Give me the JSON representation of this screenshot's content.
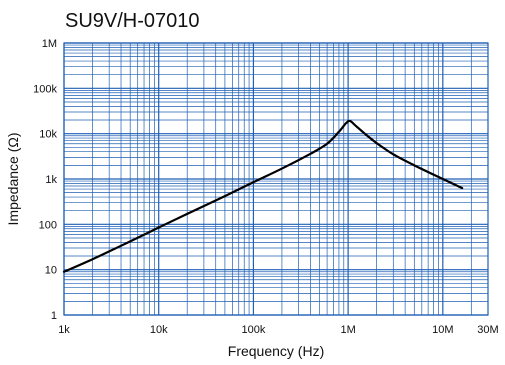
{
  "chart_data": {
    "type": "line",
    "title": "SU9V/H-07010",
    "xlabel": "Frequency (Hz)",
    "ylabel": "Impedance (Ω)",
    "x_scale": "log",
    "y_scale": "log",
    "xlim": [
      1000,
      30000000
    ],
    "ylim": [
      1,
      1000000
    ],
    "grid": true,
    "x_ticks": [
      {
        "value": 1000,
        "label": "1k"
      },
      {
        "value": 10000,
        "label": "10k"
      },
      {
        "value": 100000,
        "label": "100k"
      },
      {
        "value": 1000000,
        "label": "1M"
      },
      {
        "value": 10000000,
        "label": "10M"
      },
      {
        "value": 30000000,
        "label": "30M"
      }
    ],
    "y_ticks": [
      {
        "value": 1,
        "label": "1"
      },
      {
        "value": 10,
        "label": "10"
      },
      {
        "value": 100,
        "label": "100"
      },
      {
        "value": 1000,
        "label": "1k"
      },
      {
        "value": 10000,
        "label": "10k"
      },
      {
        "value": 100000,
        "label": "100k"
      },
      {
        "value": 1000000,
        "label": "1M"
      }
    ],
    "colors": {
      "grid": "#1f5fb4",
      "line": "#000000"
    },
    "series": [
      {
        "x": [
          1000,
          2000,
          5000,
          10000,
          20000,
          50000,
          100000,
          200000,
          400000,
          600000,
          800000,
          950000,
          1050000,
          1200000,
          1500000,
          2000000,
          3000000,
          5000000,
          10000000,
          16000000
        ],
        "y": [
          9,
          17,
          42,
          85,
          170,
          420,
          850,
          1700,
          3600,
          6000,
          11000,
          17000,
          19000,
          15000,
          10000,
          6200,
          3500,
          2000,
          1000,
          630
        ]
      }
    ]
  }
}
